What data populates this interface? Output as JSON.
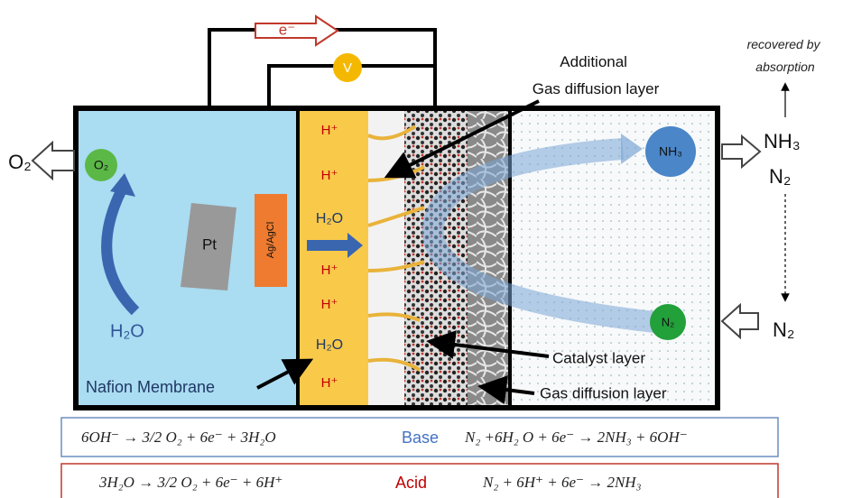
{
  "wires": {
    "electron": "e⁻",
    "voltmeter": "V"
  },
  "recovered": [
    "recovered by",
    "absorption"
  ],
  "additional_gdl": [
    "Additional",
    "Gas diffusion layer"
  ],
  "anode": {
    "o2_out": "O₂",
    "o2_bubble": "O₂",
    "water": "H₂O",
    "pt": "Pt",
    "reference": "Ag/AgCl",
    "membrane_label": "Nafion Membrane"
  },
  "membrane": [
    "H⁺",
    "H⁺",
    "H₂O",
    "H⁺",
    "H⁺",
    "H₂O",
    "H⁺"
  ],
  "cathode": {
    "nh3_bubble": "NH₃",
    "n2_bubble": "N₂",
    "catalyst": "Catalyst layer",
    "gdl": "Gas diffusion layer"
  },
  "outlets": {
    "nh3": "NH₃",
    "n2_out": "N₂",
    "n2_in": "N₂"
  },
  "reactions": {
    "base": {
      "anode": "6OH⁻ → 3/2 O₂ + 6e⁻ + 3H₂O",
      "label": "Base",
      "cathode": "N₂ +6H₂ O + 6e⁻ → 2NH₃ + 6OH⁻"
    },
    "acid": {
      "anode": "3H₂O → 3/2 O₂ + 6e⁻ + 6H⁺",
      "label": "Acid",
      "cathode": "N₂ + 6H⁺ + 6e⁻ → 2NH₃"
    }
  }
}
